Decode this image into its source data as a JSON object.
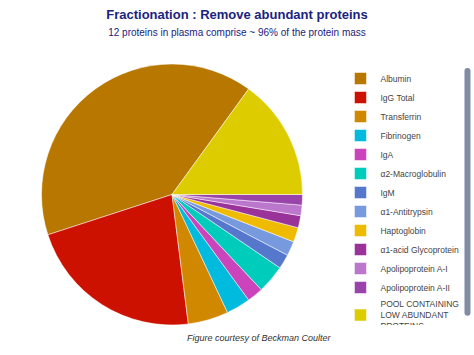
{
  "chart_data": {
    "type": "pie",
    "title": "Fractionation : Remove abundant proteins",
    "subtitle": "12 proteins in plasma comprise ~ 96% of the protein mass",
    "categories": [
      "Albumin",
      "IgG Total",
      "Transferrin",
      "Fibrinogen",
      "IgA",
      "α2-Macroglobulin",
      "IgM",
      "α1-Antitrypsin",
      "Haptoglobin",
      "α1-acid Glycoprotein",
      "Apolipoprotein A-I",
      "Apolipoprotein A-II",
      "POOL CONTAINING\nLOW ABUNDANT\nPROTEINS"
    ],
    "values": [
      40,
      22,
      5,
      3.0,
      2.0,
      3.5,
      1.8,
      1.8,
      1.8,
      1.5,
      1.3,
      1.3,
      15
    ],
    "colors": [
      "#B87800",
      "#CC1100",
      "#D08800",
      "#00BBDD",
      "#CC44BB",
      "#00CCBB",
      "#5577CC",
      "#7799DD",
      "#EEBB00",
      "#993399",
      "#BB77CC",
      "#9944AA",
      "#DDCC00"
    ],
    "legend": "right",
    "annotations": [
      "Figure courtesy of Beckman Coulter"
    ]
  }
}
